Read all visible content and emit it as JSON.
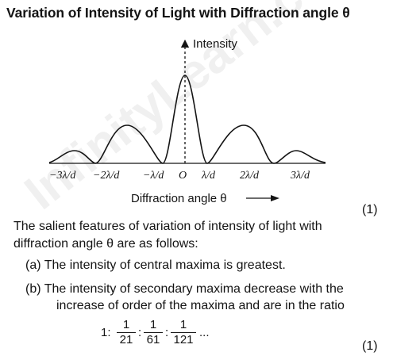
{
  "heading": "Variation of Intensity of Light with Diffraction angle θ",
  "diagram": {
    "y_axis_label": "Intensity",
    "x_ticks": [
      "−3λ/d",
      "−2λ/d",
      "−λ/d",
      "O",
      "λ/d",
      "2λ/d",
      "3λ/d"
    ],
    "x_axis_label": "Diffraction angle θ"
  },
  "marks": {
    "m1": "(1)",
    "m2": "(1)"
  },
  "intro": {
    "line1": "The salient features of variation of intensity of light with",
    "line2": "diffraction angle θ are as follows:"
  },
  "points": {
    "a": "(a) The intensity of central maxima is greatest.",
    "b_line1": "(b) The intensity of secondary maxima decrease with the",
    "b_line2": "increase of order of the maxima and are in the ratio"
  },
  "ratio": {
    "lead": "1:",
    "f1_num": "1",
    "f1_den": "21",
    "f2_num": "1",
    "f2_den": "61",
    "f3_num": "1",
    "f3_den": "121",
    "trail": "..."
  },
  "watermark": "InfinityLearn.com"
}
